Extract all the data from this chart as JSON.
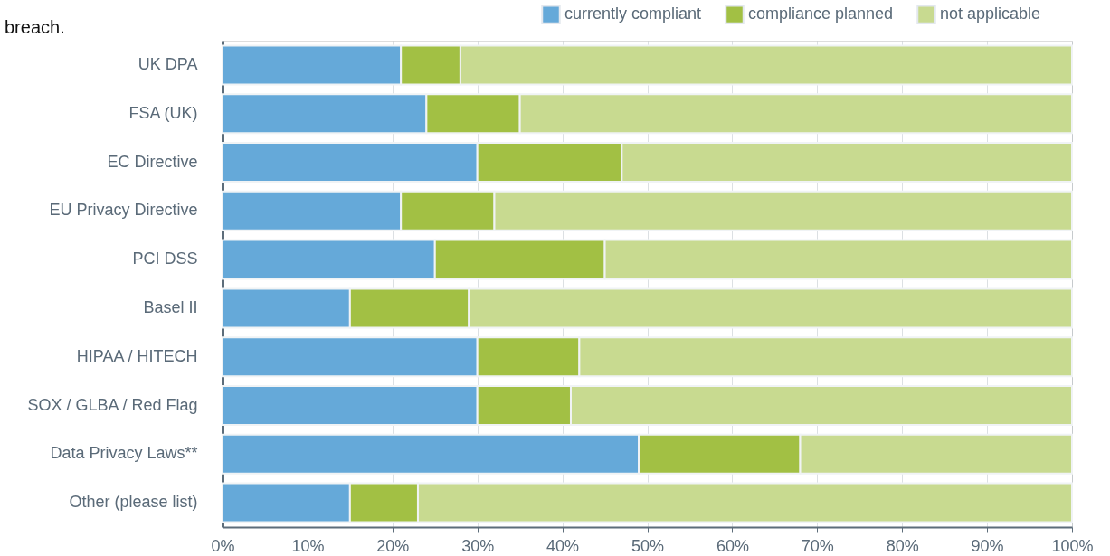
{
  "chart_data": {
    "type": "bar",
    "orientation": "horizontal",
    "stacked": true,
    "title": "breach.",
    "categories": [
      "UK DPA",
      "FSA (UK)",
      "EC Directive",
      "EU Privacy Directive",
      "PCI DSS",
      "Basel II",
      "HIPAA / HITECH",
      "SOX / GLBA / Red Flag",
      "Data Privacy Laws**",
      "Other (please list)"
    ],
    "series": [
      {
        "name": "currently compliant",
        "color": "#65a9d9",
        "values": [
          21,
          24,
          30,
          21,
          25,
          15,
          30,
          30,
          49,
          15
        ]
      },
      {
        "name": "compliance planned",
        "color": "#a2c044",
        "values": [
          7,
          11,
          17,
          11,
          20,
          14,
          12,
          11,
          19,
          8
        ]
      },
      {
        "name": "not applicable",
        "color": "#c8da90",
        "values": [
          72,
          65,
          53,
          68,
          55,
          71,
          58,
          59,
          32,
          77
        ]
      }
    ],
    "xlim": [
      0,
      100
    ],
    "xticks": [
      {
        "value": 0,
        "label": "0%"
      },
      {
        "value": 10,
        "label": "10%"
      },
      {
        "value": 20,
        "label": "20%"
      },
      {
        "value": 30,
        "label": "30%"
      },
      {
        "value": 40,
        "label": "40%"
      },
      {
        "value": 50,
        "label": "50%"
      },
      {
        "value": 60,
        "label": "60%"
      },
      {
        "value": 70,
        "label": "70%"
      },
      {
        "value": 80,
        "label": "80%"
      },
      {
        "value": 90,
        "label": "90%"
      },
      {
        "value": 100,
        "label": "100%"
      }
    ],
    "grid": "x",
    "legend": "top right"
  }
}
